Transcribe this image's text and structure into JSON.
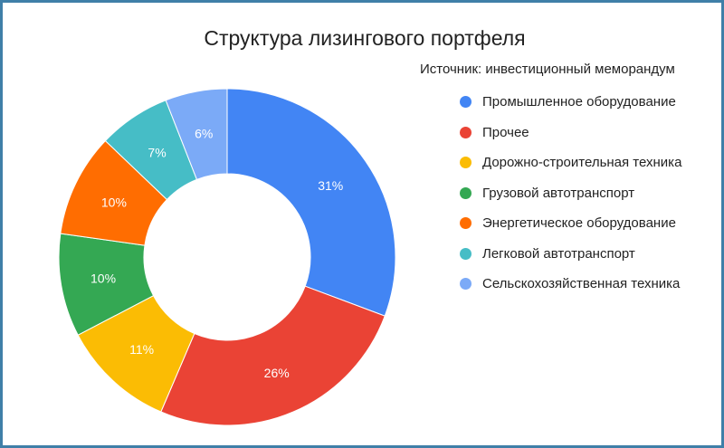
{
  "chart_data": {
    "type": "pie",
    "title": "Структура лизингового портфеля",
    "subtitle": "Источник: инвестиционный меморандум",
    "legend_position": "right",
    "slices": [
      {
        "name": "Промышленное оборудование",
        "value": 31,
        "label": "31%",
        "color": "#4285f4"
      },
      {
        "name": "Прочее",
        "value": 26,
        "label": "26%",
        "color": "#ea4335"
      },
      {
        "name": "Дорожно-строительная техника",
        "value": 11,
        "label": "11%",
        "color": "#fbbc04"
      },
      {
        "name": "Грузовой автотранспорт",
        "value": 10,
        "label": "10%",
        "color": "#34a853"
      },
      {
        "name": "Энергетическое оборудование",
        "value": 10,
        "label": "10%",
        "color": "#ff6d01"
      },
      {
        "name": "Легковой автотранспорт",
        "value": 7,
        "label": "7%",
        "color": "#46bdc6"
      },
      {
        "name": "Сельскохозяйственная техника",
        "value": 6,
        "label": "6%",
        "color": "#7baaf7"
      }
    ]
  }
}
